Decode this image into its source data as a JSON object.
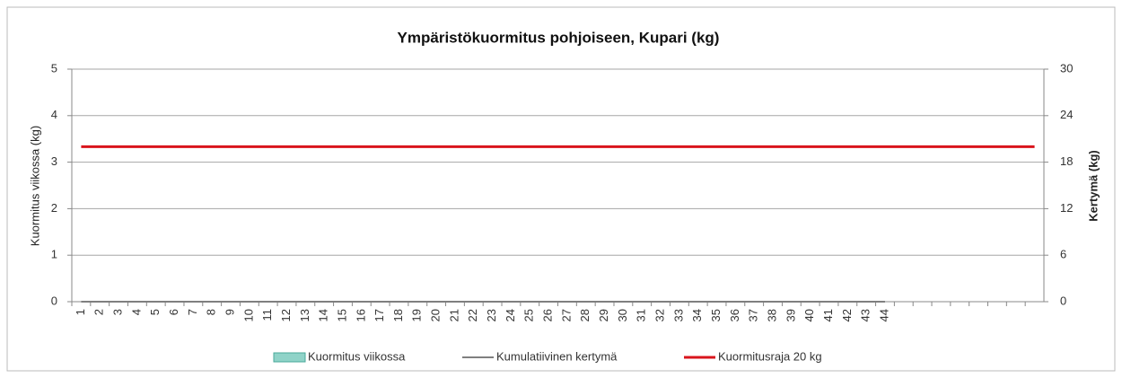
{
  "chart_data": {
    "type": "bar",
    "title": "Ympäristökuormitus pohjoiseen, Kupari (kg)",
    "ylabel": "Kuormitus viikossa (kg)",
    "y2label": "Kertymä (kg)",
    "categories": [
      1,
      2,
      3,
      4,
      5,
      6,
      7,
      8,
      9,
      10,
      11,
      12,
      13,
      14,
      15,
      16,
      17,
      18,
      19,
      20,
      21,
      22,
      23,
      24,
      25,
      26,
      27,
      28,
      29,
      30,
      31,
      32,
      33,
      34,
      35,
      36,
      37,
      38,
      39,
      40,
      41,
      42,
      43,
      44,
      null,
      null,
      null,
      null,
      null,
      null,
      null,
      null
    ],
    "ylim": [
      0,
      5
    ],
    "yticks": [
      0,
      1,
      2,
      3,
      4,
      5
    ],
    "y2lim": [
      0,
      30
    ],
    "y2ticks": [
      0,
      6,
      12,
      18,
      24,
      30
    ],
    "grid": true,
    "legend": "bottom",
    "series": [
      {
        "name": "Kuormitus viikossa",
        "type": "bar",
        "color": "#8fd3c8",
        "values": [
          0,
          0,
          0,
          0,
          0,
          0,
          0,
          0,
          0,
          0,
          0,
          0,
          0,
          0,
          0,
          0,
          0,
          0,
          0,
          0,
          0,
          0,
          0,
          0,
          0,
          0,
          0,
          0,
          0,
          0,
          0,
          0,
          0,
          0,
          0,
          0,
          0,
          0,
          0,
          0,
          0,
          0,
          0,
          0,
          null,
          null,
          null,
          null,
          null,
          null,
          null,
          null
        ]
      },
      {
        "name": "Kumulatiivinen kertymä",
        "type": "line",
        "axis": "y2",
        "color": "#7f7f7f",
        "values": [
          0,
          0,
          0,
          0,
          0,
          0,
          0,
          0,
          0,
          0,
          0,
          0,
          0,
          0,
          0,
          0,
          0,
          0,
          0,
          0,
          0,
          0,
          0,
          0,
          0,
          0,
          0,
          0,
          0,
          0,
          0,
          0,
          0,
          0,
          0,
          0,
          0,
          0,
          0,
          0,
          0,
          0,
          0,
          0,
          null,
          null,
          null,
          null,
          null,
          null,
          null,
          null
        ]
      },
      {
        "name": "Kuormitusraja 20 kg",
        "type": "line",
        "axis": "y2",
        "color": "#d9141c",
        "values": [
          20,
          20,
          20,
          20,
          20,
          20,
          20,
          20,
          20,
          20,
          20,
          20,
          20,
          20,
          20,
          20,
          20,
          20,
          20,
          20,
          20,
          20,
          20,
          20,
          20,
          20,
          20,
          20,
          20,
          20,
          20,
          20,
          20,
          20,
          20,
          20,
          20,
          20,
          20,
          20,
          20,
          20,
          20,
          20,
          20,
          20,
          20,
          20,
          20,
          20,
          20,
          20
        ]
      }
    ]
  }
}
